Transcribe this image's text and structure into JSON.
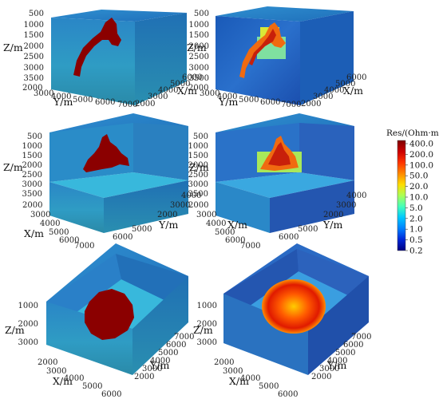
{
  "colorbar": {
    "title": "Res/(Ohm·m)",
    "ticks": [
      "400.0",
      "200.0",
      "100.0",
      "50.0",
      "20.0",
      "10.0",
      "5.0",
      "2.0",
      "1.0",
      "0.5",
      "0.2"
    ],
    "colors": [
      "#7f0000",
      "#cc0000",
      "#ff3300",
      "#ff8800",
      "#ffdd00",
      "#aaff55",
      "#44ffbb",
      "#00c8ff",
      "#0080ff",
      "#0026d8",
      "#000080"
    ]
  },
  "panels": [
    {
      "z_label": "Z/m",
      "z_ticks": [
        "500",
        "1000",
        "1500",
        "2000",
        "2500",
        "3000",
        "3500"
      ],
      "left_label": "Y/m",
      "left_ticks": [
        "2000",
        "3000",
        "4000",
        "5000",
        "6000",
        "7000"
      ],
      "right_label": "X/m",
      "right_ticks": [
        "2000",
        "3000",
        "4000",
        "5000",
        "6000"
      ]
    },
    {
      "z_label": "Z/m",
      "z_ticks": [
        "500",
        "1000",
        "1500",
        "2000",
        "2500",
        "3000",
        "3500"
      ],
      "left_label": "Y/m",
      "left_ticks": [
        "2000",
        "3000",
        "4000",
        "5000",
        "6000",
        "7000"
      ],
      "right_label": "X/m",
      "right_ticks": [
        "2000",
        "3000",
        "4000",
        "5000",
        "6000"
      ]
    },
    {
      "z_label": "Z/m",
      "z_ticks": [
        "500",
        "1000",
        "1500",
        "2000",
        "2500",
        "3000",
        "3500"
      ],
      "left_label": "X/m",
      "left_ticks": [
        "2000",
        "3000",
        "4000",
        "5000",
        "6000",
        "7000"
      ],
      "right_label": "Y/m",
      "right_ticks": [
        "2000",
        "3000",
        "4000",
        "5000",
        "6000"
      ]
    },
    {
      "z_label": "Z/m",
      "z_ticks": [
        "500",
        "1000",
        "1500",
        "2000",
        "2500",
        "3000",
        "3500"
      ],
      "left_label": "X/m",
      "left_ticks": [
        "2000",
        "3000",
        "4000",
        "5000",
        "6000",
        "7000"
      ],
      "right_label": "Y/m",
      "right_ticks": [
        "2000",
        "3000",
        "4000",
        "5000",
        "6000"
      ]
    },
    {
      "z_label": "Z/m",
      "z_ticks": [
        "1000",
        "2000",
        "3000"
      ],
      "left_label": "X/m",
      "left_ticks": [
        "2000",
        "3000",
        "4000",
        "5000",
        "6000"
      ],
      "right_label": "Y/m",
      "right_ticks": [
        "2000",
        "3000",
        "4000",
        "5000",
        "6000",
        "7000"
      ]
    },
    {
      "z_label": "Z/m",
      "z_ticks": [
        "1000",
        "2000",
        "3000"
      ],
      "left_label": "X/m",
      "left_ticks": [
        "2000",
        "3000",
        "4000",
        "5000",
        "6000"
      ],
      "right_label": "Y/m",
      "right_ticks": [
        "2000",
        "3000",
        "4000",
        "5000",
        "6000",
        "7000"
      ]
    }
  ]
}
